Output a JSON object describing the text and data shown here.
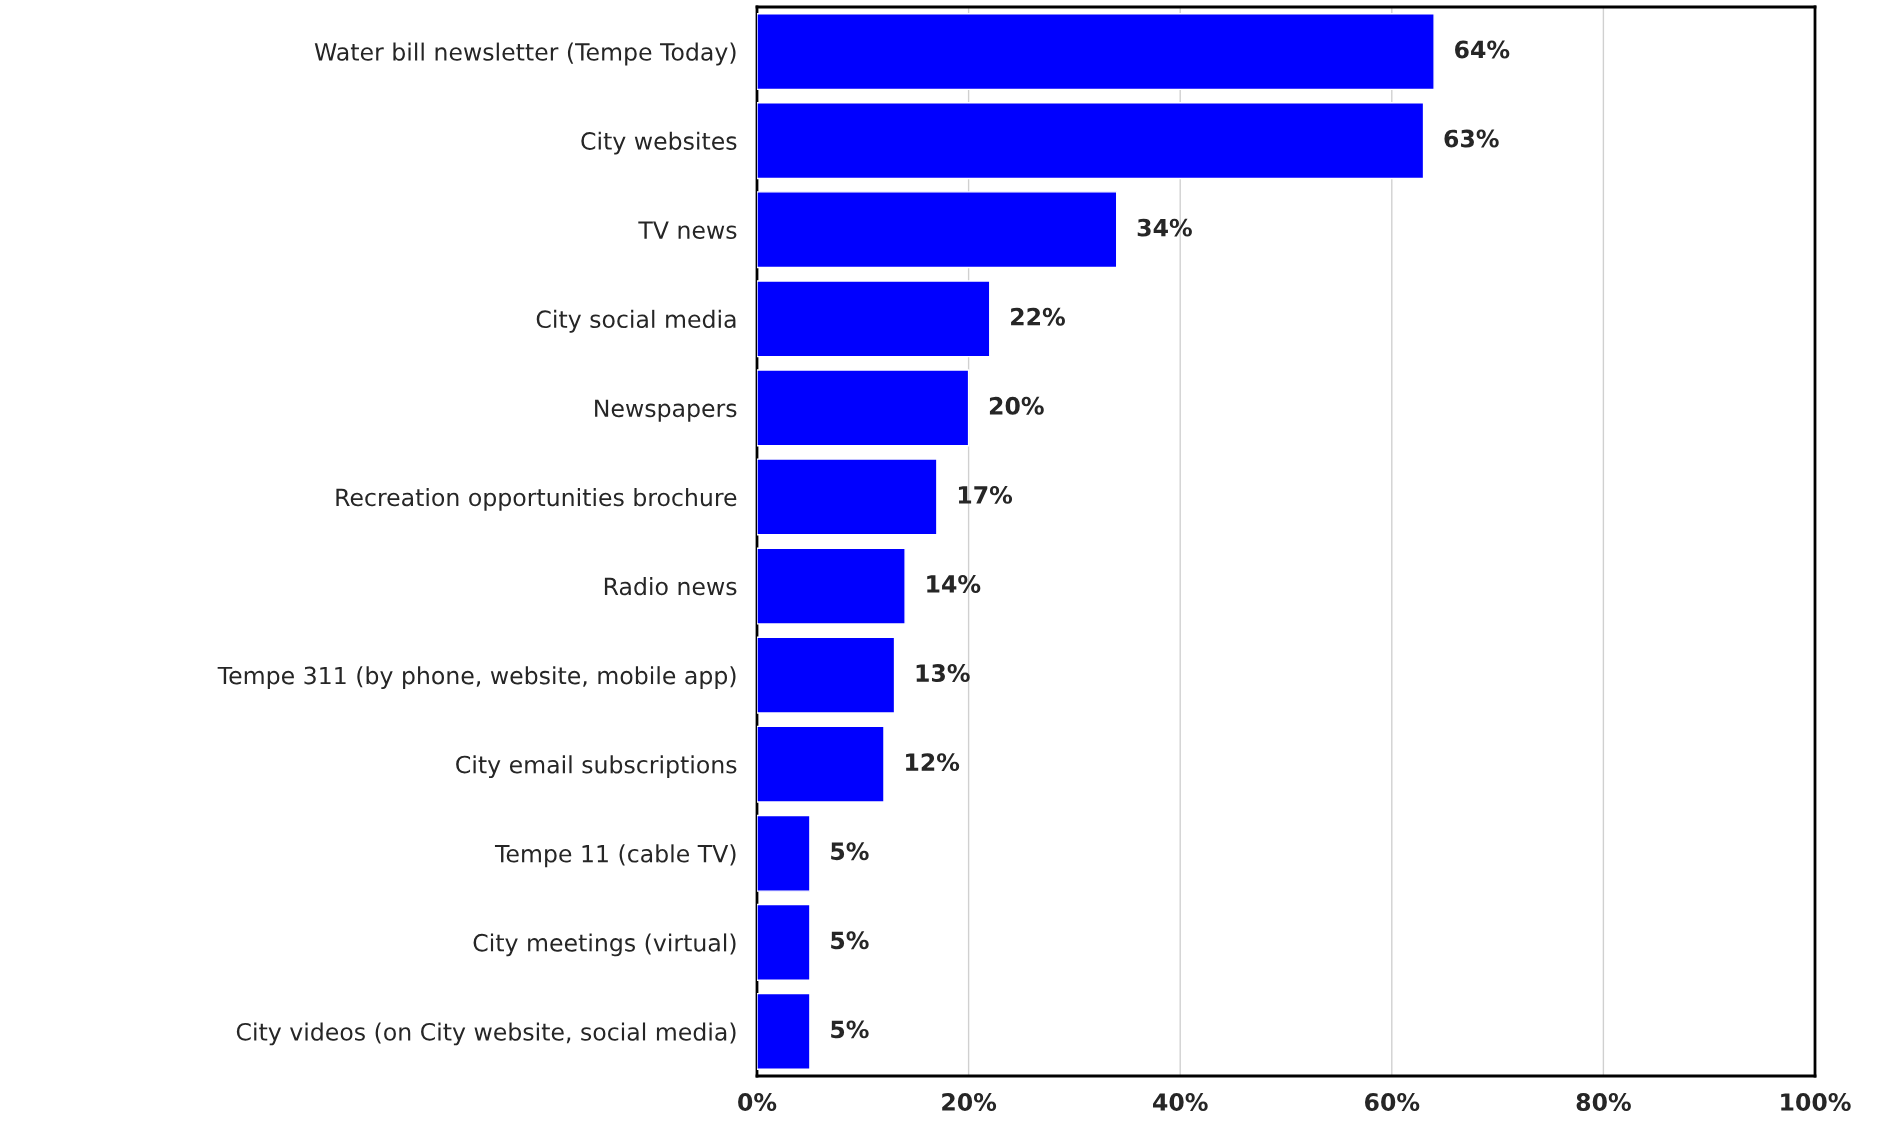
{
  "chart_data": {
    "type": "bar",
    "orientation": "horizontal",
    "categories": [
      "Water bill newsletter (Tempe Today)",
      "City websites",
      "TV news",
      "City social media",
      "Newspapers",
      "Recreation opportunities brochure",
      "Radio news",
      "Tempe 311 (by phone, website, mobile app)",
      "City email subscriptions",
      "Tempe 11 (cable TV)",
      "City meetings (virtual)",
      "City videos (on City website, social media)"
    ],
    "values": [
      64,
      63,
      34,
      22,
      20,
      17,
      14,
      13,
      12,
      5,
      5,
      5
    ],
    "value_labels": [
      "64%",
      "63%",
      "34%",
      "22%",
      "20%",
      "17%",
      "14%",
      "13%",
      "12%",
      "5%",
      "5%",
      "5%"
    ],
    "color": "#0000ff",
    "xlim": [
      0,
      100
    ],
    "xticks": [
      {
        "value": 0,
        "label": "0%"
      },
      {
        "value": 20,
        "label": "20%"
      },
      {
        "value": 40,
        "label": "40%"
      },
      {
        "value": 60,
        "label": "60%"
      },
      {
        "value": 80,
        "label": "80%"
      },
      {
        "value": 100,
        "label": "100%"
      }
    ],
    "grid": "x",
    "legend": false
  }
}
